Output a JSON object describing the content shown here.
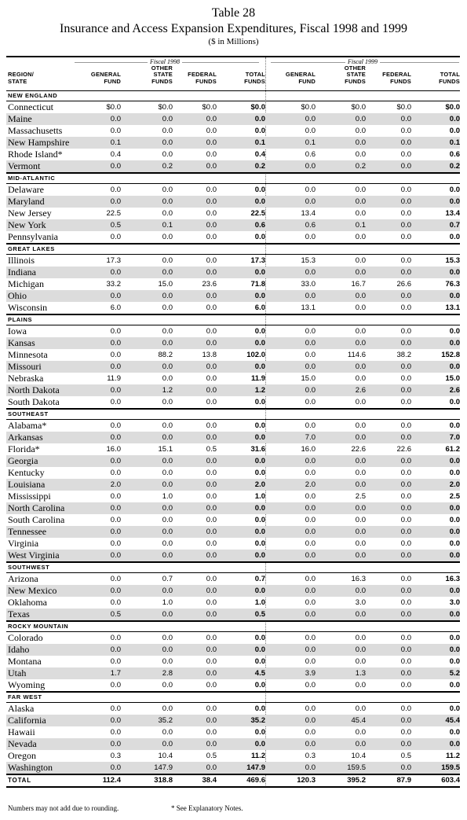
{
  "header": {
    "table_number": "Table 28",
    "title": "Insurance and Access Expansion Expenditures, Fiscal 1998 and 1999",
    "units": "($ in Millions)"
  },
  "fiscal_labels": [
    "Fiscal 1998",
    "Fiscal 1999"
  ],
  "columns": {
    "region_state": [
      "REGION/",
      "STATE"
    ],
    "general_fund": [
      "GENERAL",
      "FUND"
    ],
    "other_state_funds": [
      "OTHER",
      "STATE",
      "FUNDS"
    ],
    "federal_funds": [
      "FEDERAL",
      "FUNDS"
    ],
    "total_funds": [
      "TOTAL",
      "FUNDS"
    ]
  },
  "regions": [
    {
      "name": "NEW ENGLAND",
      "rows": [
        {
          "state": "Connecticut",
          "v": [
            "$0.0",
            "$0.0",
            "$0.0",
            "$0.0",
            "$0.0",
            "$0.0",
            "$0.0",
            "$0.0"
          ]
        },
        {
          "state": "Maine",
          "v": [
            "0.0",
            "0.0",
            "0.0",
            "0.0",
            "0.0",
            "0.0",
            "0.0",
            "0.0"
          ]
        },
        {
          "state": "Massachusetts",
          "v": [
            "0.0",
            "0.0",
            "0.0",
            "0.0",
            "0.0",
            "0.0",
            "0.0",
            "0.0"
          ]
        },
        {
          "state": "New Hampshire",
          "v": [
            "0.1",
            "0.0",
            "0.0",
            "0.1",
            "0.1",
            "0.0",
            "0.0",
            "0.1"
          ]
        },
        {
          "state": "Rhode Island*",
          "v": [
            "0.4",
            "0.0",
            "0.0",
            "0.4",
            "0.6",
            "0.0",
            "0.0",
            "0.6"
          ]
        },
        {
          "state": "Vermont",
          "v": [
            "0.0",
            "0.2",
            "0.0",
            "0.2",
            "0.0",
            "0.2",
            "0.0",
            "0.2"
          ]
        }
      ]
    },
    {
      "name": "MID-ATLANTIC",
      "rows": [
        {
          "state": "Delaware",
          "v": [
            "0.0",
            "0.0",
            "0.0",
            "0.0",
            "0.0",
            "0.0",
            "0.0",
            "0.0"
          ]
        },
        {
          "state": "Maryland",
          "v": [
            "0.0",
            "0.0",
            "0.0",
            "0.0",
            "0.0",
            "0.0",
            "0.0",
            "0.0"
          ]
        },
        {
          "state": "New Jersey",
          "v": [
            "22.5",
            "0.0",
            "0.0",
            "22.5",
            "13.4",
            "0.0",
            "0.0",
            "13.4"
          ]
        },
        {
          "state": "New York",
          "v": [
            "0.5",
            "0.1",
            "0.0",
            "0.6",
            "0.6",
            "0.1",
            "0.0",
            "0.7"
          ]
        },
        {
          "state": "Pennsylvania",
          "v": [
            "0.0",
            "0.0",
            "0.0",
            "0.0",
            "0.0",
            "0.0",
            "0.0",
            "0.0"
          ]
        }
      ]
    },
    {
      "name": "GREAT LAKES",
      "rows": [
        {
          "state": "Illinois",
          "v": [
            "17.3",
            "0.0",
            "0.0",
            "17.3",
            "15.3",
            "0.0",
            "0.0",
            "15.3"
          ]
        },
        {
          "state": "Indiana",
          "v": [
            "0.0",
            "0.0",
            "0.0",
            "0.0",
            "0.0",
            "0.0",
            "0.0",
            "0.0"
          ]
        },
        {
          "state": "Michigan",
          "v": [
            "33.2",
            "15.0",
            "23.6",
            "71.8",
            "33.0",
            "16.7",
            "26.6",
            "76.3"
          ]
        },
        {
          "state": "Ohio",
          "v": [
            "0.0",
            "0.0",
            "0.0",
            "0.0",
            "0.0",
            "0.0",
            "0.0",
            "0.0"
          ]
        },
        {
          "state": "Wisconsin",
          "v": [
            "6.0",
            "0.0",
            "0.0",
            "6.0",
            "13.1",
            "0.0",
            "0.0",
            "13.1"
          ]
        }
      ]
    },
    {
      "name": "PLAINS",
      "rows": [
        {
          "state": "Iowa",
          "v": [
            "0.0",
            "0.0",
            "0.0",
            "0.0",
            "0.0",
            "0.0",
            "0.0",
            "0.0"
          ]
        },
        {
          "state": "Kansas",
          "v": [
            "0.0",
            "0.0",
            "0.0",
            "0.0",
            "0.0",
            "0.0",
            "0.0",
            "0.0"
          ]
        },
        {
          "state": "Minnesota",
          "v": [
            "0.0",
            "88.2",
            "13.8",
            "102.0",
            "0.0",
            "114.6",
            "38.2",
            "152.8"
          ]
        },
        {
          "state": "Missouri",
          "v": [
            "0.0",
            "0.0",
            "0.0",
            "0.0",
            "0.0",
            "0.0",
            "0.0",
            "0.0"
          ]
        },
        {
          "state": "Nebraska",
          "v": [
            "11.9",
            "0.0",
            "0.0",
            "11.9",
            "15.0",
            "0.0",
            "0.0",
            "15.0"
          ]
        },
        {
          "state": "North Dakota",
          "v": [
            "0.0",
            "1.2",
            "0.0",
            "1.2",
            "0.0",
            "2.6",
            "0.0",
            "2.6"
          ]
        },
        {
          "state": "South Dakota",
          "v": [
            "0.0",
            "0.0",
            "0.0",
            "0.0",
            "0.0",
            "0.0",
            "0.0",
            "0.0"
          ]
        }
      ]
    },
    {
      "name": "SOUTHEAST",
      "rows": [
        {
          "state": "Alabama*",
          "v": [
            "0.0",
            "0.0",
            "0.0",
            "0.0",
            "0.0",
            "0.0",
            "0.0",
            "0.0"
          ]
        },
        {
          "state": "Arkansas",
          "v": [
            "0.0",
            "0.0",
            "0.0",
            "0.0",
            "7.0",
            "0.0",
            "0.0",
            "7.0"
          ]
        },
        {
          "state": "Florida*",
          "v": [
            "16.0",
            "15.1",
            "0.5",
            "31.6",
            "16.0",
            "22.6",
            "22.6",
            "61.2"
          ]
        },
        {
          "state": "Georgia",
          "v": [
            "0.0",
            "0.0",
            "0.0",
            "0.0",
            "0.0",
            "0.0",
            "0.0",
            "0.0"
          ]
        },
        {
          "state": "Kentucky",
          "v": [
            "0.0",
            "0.0",
            "0.0",
            "0.0",
            "0.0",
            "0.0",
            "0.0",
            "0.0"
          ]
        },
        {
          "state": "Louisiana",
          "v": [
            "2.0",
            "0.0",
            "0.0",
            "2.0",
            "2.0",
            "0.0",
            "0.0",
            "2.0"
          ]
        },
        {
          "state": "Mississippi",
          "v": [
            "0.0",
            "1.0",
            "0.0",
            "1.0",
            "0.0",
            "2.5",
            "0.0",
            "2.5"
          ]
        },
        {
          "state": "North Carolina",
          "v": [
            "0.0",
            "0.0",
            "0.0",
            "0.0",
            "0.0",
            "0.0",
            "0.0",
            "0.0"
          ]
        },
        {
          "state": "South Carolina",
          "v": [
            "0.0",
            "0.0",
            "0.0",
            "0.0",
            "0.0",
            "0.0",
            "0.0",
            "0.0"
          ]
        },
        {
          "state": "Tennessee",
          "v": [
            "0.0",
            "0.0",
            "0.0",
            "0.0",
            "0.0",
            "0.0",
            "0.0",
            "0.0"
          ]
        },
        {
          "state": "Virginia",
          "v": [
            "0.0",
            "0.0",
            "0.0",
            "0.0",
            "0.0",
            "0.0",
            "0.0",
            "0.0"
          ]
        },
        {
          "state": "West Virginia",
          "v": [
            "0.0",
            "0.0",
            "0.0",
            "0.0",
            "0.0",
            "0.0",
            "0.0",
            "0.0"
          ]
        }
      ]
    },
    {
      "name": "SOUTHWEST",
      "rows": [
        {
          "state": "Arizona",
          "v": [
            "0.0",
            "0.7",
            "0.0",
            "0.7",
            "0.0",
            "16.3",
            "0.0",
            "16.3"
          ]
        },
        {
          "state": "New Mexico",
          "v": [
            "0.0",
            "0.0",
            "0.0",
            "0.0",
            "0.0",
            "0.0",
            "0.0",
            "0.0"
          ]
        },
        {
          "state": "Oklahoma",
          "v": [
            "0.0",
            "1.0",
            "0.0",
            "1.0",
            "0.0",
            "3.0",
            "0.0",
            "3.0"
          ]
        },
        {
          "state": "Texas",
          "v": [
            "0.5",
            "0.0",
            "0.0",
            "0.5",
            "0.0",
            "0.0",
            "0.0",
            "0.0"
          ]
        }
      ]
    },
    {
      "name": "ROCKY MOUNTAIN",
      "rows": [
        {
          "state": "Colorado",
          "v": [
            "0.0",
            "0.0",
            "0.0",
            "0.0",
            "0.0",
            "0.0",
            "0.0",
            "0.0"
          ]
        },
        {
          "state": "Idaho",
          "v": [
            "0.0",
            "0.0",
            "0.0",
            "0.0",
            "0.0",
            "0.0",
            "0.0",
            "0.0"
          ]
        },
        {
          "state": "Montana",
          "v": [
            "0.0",
            "0.0",
            "0.0",
            "0.0",
            "0.0",
            "0.0",
            "0.0",
            "0.0"
          ]
        },
        {
          "state": "Utah",
          "v": [
            "1.7",
            "2.8",
            "0.0",
            "4.5",
            "3.9",
            "1.3",
            "0.0",
            "5.2"
          ]
        },
        {
          "state": "Wyoming",
          "v": [
            "0.0",
            "0.0",
            "0.0",
            "0.0",
            "0.0",
            "0.0",
            "0.0",
            "0.0"
          ]
        }
      ]
    },
    {
      "name": "FAR WEST",
      "rows": [
        {
          "state": "Alaska",
          "v": [
            "0.0",
            "0.0",
            "0.0",
            "0.0",
            "0.0",
            "0.0",
            "0.0",
            "0.0"
          ]
        },
        {
          "state": "California",
          "v": [
            "0.0",
            "35.2",
            "0.0",
            "35.2",
            "0.0",
            "45.4",
            "0.0",
            "45.4"
          ]
        },
        {
          "state": "Hawaii",
          "v": [
            "0.0",
            "0.0",
            "0.0",
            "0.0",
            "0.0",
            "0.0",
            "0.0",
            "0.0"
          ]
        },
        {
          "state": "Nevada",
          "v": [
            "0.0",
            "0.0",
            "0.0",
            "0.0",
            "0.0",
            "0.0",
            "0.0",
            "0.0"
          ]
        },
        {
          "state": "Oregon",
          "v": [
            "0.3",
            "10.4",
            "0.5",
            "11.2",
            "0.3",
            "10.4",
            "0.5",
            "11.2"
          ]
        },
        {
          "state": "Washington",
          "v": [
            "0.0",
            "147.9",
            "0.0",
            "147.9",
            "0.0",
            "159.5",
            "0.0",
            "159.5"
          ]
        }
      ]
    }
  ],
  "total": {
    "label": "TOTAL",
    "v": [
      "112.4",
      "318.8",
      "38.4",
      "469.6",
      "120.3",
      "395.2",
      "87.9",
      "603.4"
    ]
  },
  "footnotes": {
    "rounding": "Numbers may not add due to rounding.",
    "explanatory": "* See Explanatory Notes."
  }
}
